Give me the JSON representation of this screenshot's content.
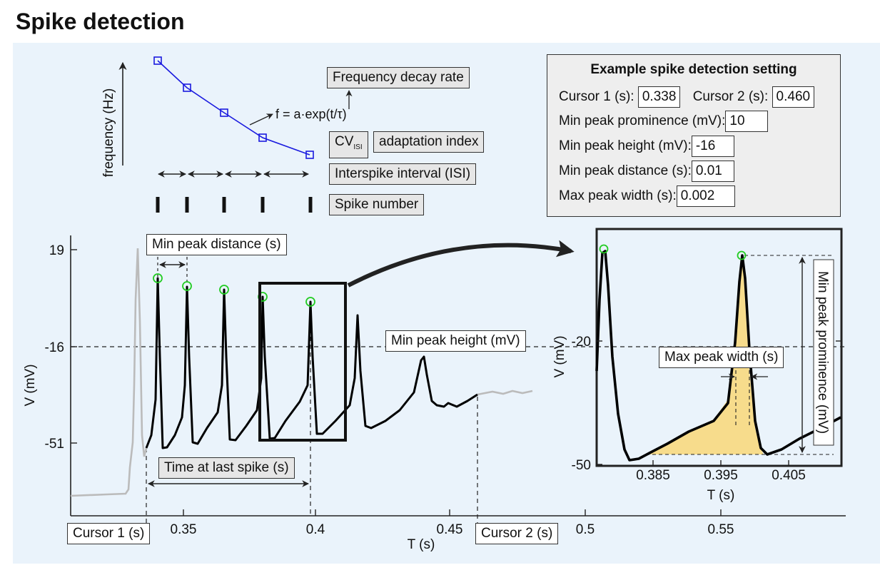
{
  "title": "Spike detection",
  "schematic": {
    "y_axis_label": "frequency (Hz)",
    "formula": "f = a·exp(t/τ)",
    "labels": {
      "frequency_decay_rate": "Frequency decay rate",
      "cv_prefix": "CV",
      "cv_subscript": "ISI",
      "adaptation_index": "adaptation index",
      "isi": "Interspike interval (ISI)",
      "spike_number": "Spike number"
    },
    "frequency_points": [
      5,
      4,
      3,
      2,
      1
    ]
  },
  "settings": {
    "title": "Example spike detection setting",
    "cursor1_label": "Cursor 1 (s):",
    "cursor1_value": "0.338",
    "cursor2_label": "Cursor 2 (s):",
    "cursor2_value": "0.460",
    "min_prominence_label": "Min peak prominence (mV):",
    "min_prominence_value": "10",
    "min_height_label": "Min peak height (mV):",
    "min_height_value": "-16",
    "min_distance_label": "Min peak distance (s):",
    "min_distance_value": "0.01",
    "max_width_label": "Max peak width (s):",
    "max_width_value": "0.002"
  },
  "main_plot": {
    "ylabel": "V (mV)",
    "xlabel": "T (s)",
    "yticks": [
      "19",
      "-16",
      "-51"
    ],
    "xticks": [
      "0.35",
      "0.4",
      "0.45",
      "0.5",
      "0.55"
    ],
    "annotations": {
      "min_peak_distance": "Min peak distance (s)",
      "min_peak_height": "Min peak height (mV)",
      "time_at_last_spike": "Time at last spike (s)",
      "cursor1": "Cursor 1 (s)",
      "cursor2": "Cursor 2 (s)"
    }
  },
  "inset_plot": {
    "ylabel": "V (mV)",
    "xlabel": "T (s)",
    "yticks": [
      "-20",
      "-50"
    ],
    "xticks": [
      "0.385",
      "0.395",
      "0.405"
    ],
    "annotations": {
      "max_peak_width": "Max peak width (s)",
      "min_peak_prominence": "Min peak prominence (mV)"
    }
  },
  "colors": {
    "panel_bg": "#eaf3fb",
    "trace": "#000000",
    "trace_outside_cursors": "#bbbbbb",
    "peak_marker": "#22cc22",
    "fit_line": "#1a1adf",
    "prominence_fill": "#f7dc8c"
  }
}
